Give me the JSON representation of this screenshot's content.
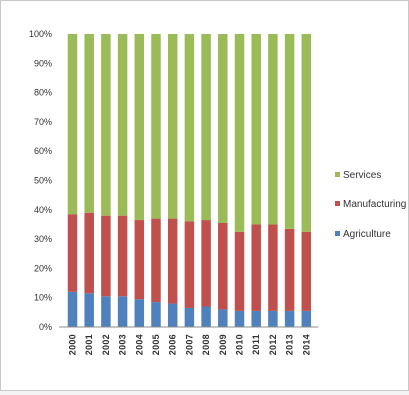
{
  "chart_data": {
    "type": "bar",
    "stacked": true,
    "percent_scale": true,
    "categories": [
      "2000",
      "2001",
      "2002",
      "2003",
      "2004",
      "2005",
      "2006",
      "2007",
      "2008",
      "2009",
      "2010",
      "2011",
      "2012",
      "2013",
      "2014"
    ],
    "series": [
      {
        "name": "Agriculture",
        "color": "#4f81bd",
        "values": [
          12,
          11.5,
          10.5,
          10.5,
          9.5,
          8.5,
          8,
          6.5,
          7,
          6,
          5.5,
          5.5,
          5.5,
          5.5,
          5.5
        ]
      },
      {
        "name": "Manufacturing",
        "color": "#c0504d",
        "values": [
          26.5,
          27.5,
          27.5,
          27.5,
          27,
          28.5,
          29,
          29.5,
          29.5,
          29.5,
          27,
          29.5,
          29.5,
          28,
          27
        ]
      },
      {
        "name": "Services",
        "color": "#9bbb59",
        "values": [
          61.5,
          61,
          62,
          62,
          63.5,
          63,
          63,
          64,
          63.5,
          64.5,
          67.5,
          65,
          65,
          66.5,
          67.5
        ]
      }
    ],
    "y_ticks": [
      "0%",
      "10%",
      "20%",
      "30%",
      "40%",
      "50%",
      "60%",
      "70%",
      "80%",
      "90%",
      "100%"
    ],
    "ylim": [
      0,
      100
    ],
    "grid": false,
    "legend_position": "right",
    "legend": [
      "Services",
      "Manufacturing",
      "Agriculture"
    ],
    "title": "",
    "xlabel": "",
    "ylabel": ""
  }
}
